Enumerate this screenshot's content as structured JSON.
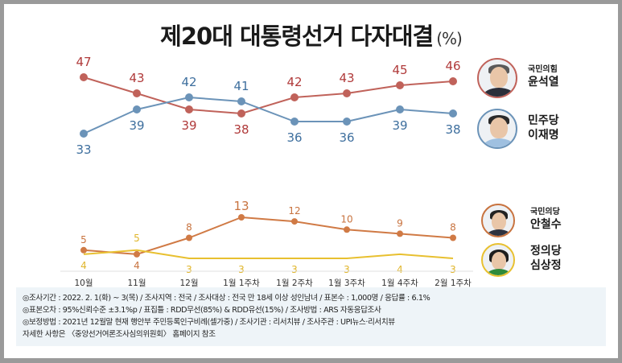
{
  "chart_data": [
    {
      "type": "line",
      "title": "제20대 대통령선거 다자대결",
      "unit": "(%)",
      "categories": [
        "10월",
        "11월",
        "12월",
        "1월 1주차",
        "1월 2주차",
        "1월 3주차",
        "1월 4주차",
        "2월 1주차"
      ],
      "series": [
        {
          "name": "윤석열",
          "party": "국민의힘",
          "color": "#c0625a",
          "label_color": "#b03a3a",
          "values": [
            47,
            43,
            39,
            38,
            42,
            43,
            45,
            46
          ]
        },
        {
          "name": "이재명",
          "party": "민주당",
          "color": "#6b93b8",
          "label_color": "#3e6f9e",
          "values": [
            33,
            39,
            42,
            41,
            36,
            36,
            39,
            38
          ]
        }
      ],
      "label_positions": {
        "윤석열": [
          "above",
          "above",
          "below",
          "below",
          "above",
          "above",
          "above",
          "above"
        ],
        "이재명": [
          "below",
          "below",
          "above",
          "above",
          "below",
          "below",
          "below",
          "below"
        ]
      },
      "ylim": [
        31,
        49
      ],
      "grid": false
    },
    {
      "type": "line",
      "categories": [
        "10월",
        "11월",
        "12월",
        "1월 1주차",
        "1월 2주차",
        "1월 3주차",
        "1월 4주차",
        "2월 1주차"
      ],
      "series": [
        {
          "name": "안철수",
          "party": "국민의당",
          "color": "#d07a45",
          "label_color": "#c8733f",
          "values": [
            5,
            4,
            8,
            13,
            12,
            10,
            9,
            8
          ]
        },
        {
          "name": "심상정",
          "party": "정의당",
          "color": "#e8c030",
          "label_color": "#e0b52a",
          "values": [
            4,
            5,
            3,
            3,
            3,
            3,
            4,
            3
          ]
        }
      ],
      "label_positions": {
        "안철수": [
          "above",
          "below",
          "above",
          "above",
          "above",
          "above",
          "above",
          "above"
        ],
        "심상정": [
          "below",
          "above",
          "below",
          "below",
          "below",
          "below",
          "below",
          "below"
        ]
      },
      "ylim": [
        1,
        14
      ],
      "grid": false
    }
  ],
  "legend": [
    {
      "party": "국민의힘",
      "name": "윤석열",
      "ring": "#c0625a",
      "hair": "#4a4a4a",
      "suit": "#2b2f3a"
    },
    {
      "party": "민주당",
      "name": "이재명",
      "ring": "#6b93b8",
      "hair": "#2a2a2a",
      "suit": "#9fc0e0"
    },
    {
      "party": "국민의당",
      "name": "안철수",
      "ring": "#c8733f",
      "hair": "#222222",
      "suit": "#2d3340"
    },
    {
      "party": "정의당",
      "name": "심상정",
      "ring": "#e8c030",
      "hair": "#1e1e1e",
      "suit": "#2f8a3a"
    }
  ],
  "notes": [
    "◎조사기간 : 2022. 2. 1(화) ~ 3(목) / 조사지역 : 전국 / 조사대상 : 전국 만 18세 이상 성인남녀 / 표본수 : 1,000명 / 응답률 : 6.1%",
    "◎표본오차 : 95%신뢰수준 ±3.1%p  / 표집틀 : RDD무선(85%) & RDD유선(15%) / 조사방법 : ARS 자동응답조사",
    "◎보정방법 : 2021년 12월말 현재 행안부 주민등록인구비례(셀가중) / 조사기관 : 리서치뷰 / 조사주관 : UPI뉴스·리서치뷰",
    "자세한 사항은 〈중앙선거여론조사심의위원회〉 홈페이지 참조"
  ]
}
